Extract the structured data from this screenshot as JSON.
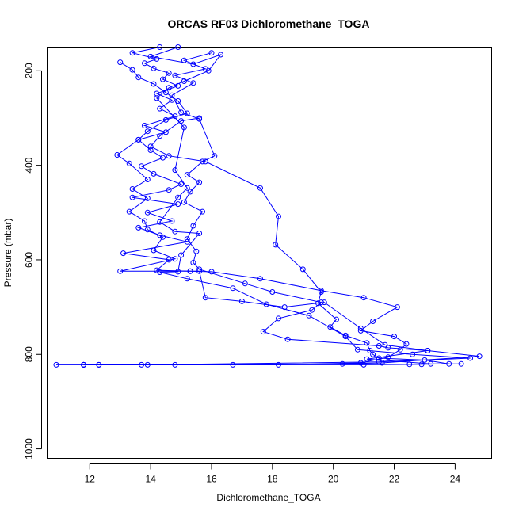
{
  "chart_data": {
    "type": "line",
    "title": "ORCAS RF03 Dichloromethane_TOGA",
    "xlabel": "Dichloromethane_TOGA",
    "ylabel": "Pressure (mbar)",
    "xlim": [
      10.6,
      25.2
    ],
    "ylim": [
      1020,
      150
    ],
    "y_axis_reversed": true,
    "x_ticks": [
      12,
      14,
      16,
      18,
      20,
      22,
      24
    ],
    "y_ticks": [
      200,
      400,
      600,
      800,
      1000
    ],
    "grid": false,
    "color": "#0000ff",
    "marker": "open-circle",
    "series": [
      {
        "points": [
          [
            14.3,
            150
          ],
          [
            13.4,
            162
          ],
          [
            14.2,
            175
          ],
          [
            13.8,
            184
          ],
          [
            14.1,
            195
          ],
          [
            14.6,
            205
          ],
          [
            14.4,
            218
          ],
          [
            14.9,
            232
          ],
          [
            14.2,
            248
          ],
          [
            14.7,
            262
          ],
          [
            14.3,
            280
          ],
          [
            14.8,
            296
          ],
          [
            13.8,
            316
          ],
          [
            14.5,
            330
          ],
          [
            13.6,
            346
          ],
          [
            14.0,
            368
          ],
          [
            14.4,
            384
          ],
          [
            13.7,
            402
          ],
          [
            14.1,
            418
          ],
          [
            15.0,
            440
          ],
          [
            14.6,
            452
          ],
          [
            13.4,
            468
          ],
          [
            14.9,
            482
          ],
          [
            13.9,
            500
          ],
          [
            14.7,
            518
          ],
          [
            13.6,
            532
          ],
          [
            14.3,
            548
          ],
          [
            15.2,
            562
          ],
          [
            13.1,
            586
          ],
          [
            14.6,
            600
          ],
          [
            14.2,
            622
          ],
          [
            15.3,
            624
          ],
          [
            15.6,
            624
          ],
          [
            15.8,
            680
          ],
          [
            17.0,
            688
          ],
          [
            18.4,
            700
          ],
          [
            19.7,
            690
          ],
          [
            20.9,
            745
          ],
          [
            21.7,
            780
          ],
          [
            23.1,
            792
          ],
          [
            24.8,
            804
          ],
          [
            21.6,
            818
          ],
          [
            20.3,
            820
          ],
          [
            16.7,
            822
          ],
          [
            11.8,
            822
          ],
          [
            10.9,
            822
          ]
        ]
      },
      {
        "points": [
          [
            16.0,
            162
          ],
          [
            15.1,
            178
          ],
          [
            15.8,
            196
          ],
          [
            14.8,
            210
          ],
          [
            15.4,
            226
          ],
          [
            14.7,
            252
          ],
          [
            15.0,
            288
          ],
          [
            15.6,
            302
          ],
          [
            16.1,
            380
          ],
          [
            15.7,
            392
          ],
          [
            15.2,
            420
          ],
          [
            15.6,
            436
          ],
          [
            15.3,
            456
          ],
          [
            15.1,
            478
          ],
          [
            15.7,
            498
          ],
          [
            15.4,
            528
          ],
          [
            15.2,
            556
          ],
          [
            15.5,
            582
          ],
          [
            15.4,
            606
          ],
          [
            15.6,
            620
          ],
          [
            17.1,
            650
          ],
          [
            18.0,
            668
          ],
          [
            19.6,
            690
          ],
          [
            19.3,
            706
          ],
          [
            18.2,
            724
          ],
          [
            17.7,
            752
          ],
          [
            18.5,
            768
          ],
          [
            21.5,
            782
          ],
          [
            21.8,
            786
          ],
          [
            23.1,
            792
          ],
          [
            21.1,
            810
          ],
          [
            23.2,
            820
          ],
          [
            24.2,
            820
          ],
          [
            22.5,
            821
          ],
          [
            14.8,
            822
          ],
          [
            11.8,
            822
          ]
        ]
      },
      {
        "points": [
          [
            13.0,
            182
          ],
          [
            13.4,
            198
          ],
          [
            13.6,
            214
          ],
          [
            14.1,
            228
          ],
          [
            14.5,
            246
          ],
          [
            14.9,
            264
          ],
          [
            15.2,
            290
          ],
          [
            14.5,
            304
          ],
          [
            13.9,
            328
          ],
          [
            13.6,
            346
          ],
          [
            12.9,
            378
          ],
          [
            13.3,
            396
          ],
          [
            13.9,
            430
          ],
          [
            13.4,
            450
          ],
          [
            13.9,
            470
          ],
          [
            13.3,
            498
          ],
          [
            13.8,
            518
          ],
          [
            13.9,
            536
          ],
          [
            14.4,
            552
          ],
          [
            14.1,
            580
          ],
          [
            14.8,
            598
          ],
          [
            13.0,
            624
          ],
          [
            15.3,
            624
          ],
          [
            16.0,
            625
          ],
          [
            17.6,
            640
          ],
          [
            19.6,
            665
          ],
          [
            21.0,
            680
          ],
          [
            22.1,
            700
          ],
          [
            21.3,
            730
          ],
          [
            20.9,
            750
          ],
          [
            22.0,
            762
          ],
          [
            22.4,
            778
          ],
          [
            22.2,
            790
          ],
          [
            21.8,
            806
          ],
          [
            20.9,
            818
          ],
          [
            18.2,
            822
          ],
          [
            12.3,
            822
          ],
          [
            11.8,
            822
          ]
        ]
      },
      {
        "points": [
          [
            15.6,
            300
          ],
          [
            15.0,
            306
          ],
          [
            14.3,
            338
          ],
          [
            14.0,
            360
          ],
          [
            14.6,
            380
          ],
          [
            15.8,
            392
          ],
          [
            17.6,
            448
          ],
          [
            18.2,
            508
          ],
          [
            18.1,
            568
          ],
          [
            19.0,
            620
          ],
          [
            19.6,
            668
          ],
          [
            19.5,
            692
          ],
          [
            20.1,
            726
          ],
          [
            19.9,
            742
          ],
          [
            20.4,
            760
          ],
          [
            21.1,
            776
          ],
          [
            21.2,
            792
          ],
          [
            21.3,
            800
          ],
          [
            21.5,
            808
          ],
          [
            23.0,
            812
          ],
          [
            23.8,
            820
          ],
          [
            22.9,
            821
          ],
          [
            21.0,
            822
          ],
          [
            13.9,
            822
          ],
          [
            11.8,
            822
          ]
        ]
      },
      {
        "points": [
          [
            14.9,
            150
          ],
          [
            14.0,
            170
          ],
          [
            15.4,
            186
          ],
          [
            16.3,
            166
          ],
          [
            15.9,
            200
          ],
          [
            15.1,
            222
          ],
          [
            14.6,
            236
          ],
          [
            14.2,
            258
          ],
          [
            15.1,
            320
          ],
          [
            14.8,
            410
          ],
          [
            15.2,
            448
          ],
          [
            14.9,
            468
          ],
          [
            14.3,
            520
          ],
          [
            14.8,
            540
          ],
          [
            15.6,
            544
          ],
          [
            15.0,
            590
          ],
          [
            14.9,
            625
          ],
          [
            14.3,
            626
          ],
          [
            15.2,
            640
          ],
          [
            16.7,
            660
          ],
          [
            17.8,
            694
          ],
          [
            19.2,
            718
          ],
          [
            20.4,
            762
          ],
          [
            20.8,
            790
          ],
          [
            22.6,
            800
          ],
          [
            24.5,
            808
          ],
          [
            21.5,
            816
          ],
          [
            13.7,
            822
          ],
          [
            12.3,
            822
          ]
        ]
      }
    ]
  }
}
